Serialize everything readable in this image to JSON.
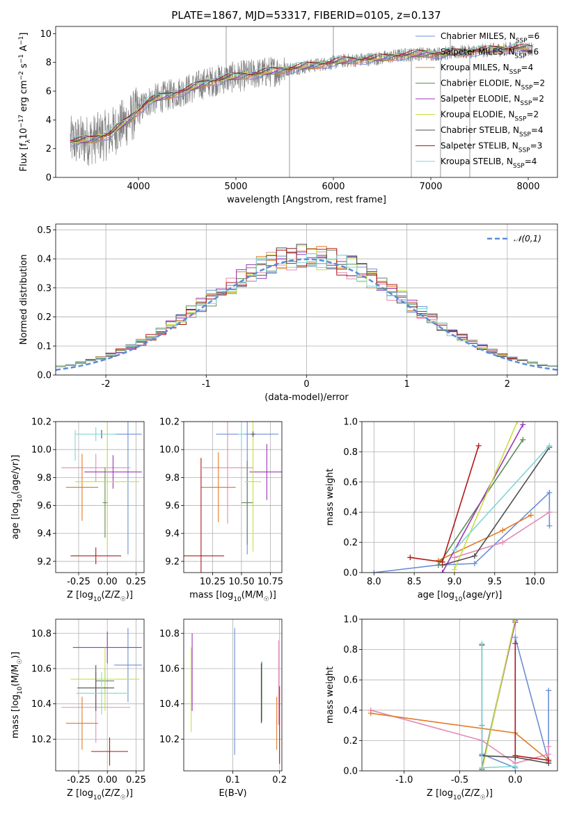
{
  "chart_data": [
    {
      "id": "spectrum",
      "type": "line",
      "title": "PLATE=1867, MJD=53317, FIBERID=0105, z=0.137",
      "xlabel": "wavelength [Angstrom, rest frame]",
      "ylabel": "Flux [fλ10⁻¹⁷ erg cm⁻² s⁻¹ A⁻¹]",
      "xlim": [
        3150,
        8300
      ],
      "ylim": [
        0,
        10.5
      ],
      "xticks": [
        4000,
        5000,
        6000,
        7000,
        8000
      ],
      "yticks": [
        0,
        2,
        4,
        6,
        8,
        10
      ],
      "legend_position": "upper right",
      "series": [
        {
          "name": "Chabrier MILES, N_SSP=6",
          "color": "#6b8ed6"
        },
        {
          "name": "Salpeter MILES, N_SSP=6",
          "color": "#e38bb4"
        },
        {
          "name": "Kroupa MILES, N_SSP=4",
          "color": "#e07b25"
        },
        {
          "name": "Chabrier ELODIE, N_SSP=2",
          "color": "#5c8a5c"
        },
        {
          "name": "Salpeter ELODIE, N_SSP=2",
          "color": "#9a35b5"
        },
        {
          "name": "Kroupa ELODIE, N_SSP=2",
          "color": "#c9df3f"
        },
        {
          "name": "Chabrier STELIB, N_SSP=4",
          "color": "#4d4d4d"
        },
        {
          "name": "Salpeter STELIB, N_SSP=3",
          "color": "#b01818"
        },
        {
          "name": "Kroupa STELIB, N_SSP=4",
          "color": "#7fd6d6"
        }
      ],
      "continuum_x": [
        3300,
        3500,
        3700,
        3900,
        4100,
        4300,
        4500,
        4700,
        4900,
        5100,
        5300,
        5500,
        5700,
        5900,
        6100,
        6300,
        6500,
        6700,
        6900,
        7100,
        7300,
        7500,
        7700,
        7900,
        8050
      ],
      "continuum_y": [
        2.5,
        2.6,
        3.0,
        4.0,
        5.3,
        5.7,
        6.1,
        6.6,
        6.9,
        7.1,
        7.3,
        7.5,
        7.7,
        7.9,
        8.1,
        8.2,
        8.3,
        8.5,
        8.6,
        8.6,
        8.7,
        8.8,
        8.9,
        9.0,
        8.9
      ]
    },
    {
      "id": "residuals",
      "type": "histogram",
      "xlabel": "(data-model)/error",
      "ylabel": "Normed distribution",
      "xlim": [
        -2.5,
        2.5
      ],
      "ylim": [
        0,
        0.52
      ],
      "xticks": [
        -2,
        -1,
        0,
        1,
        2
      ],
      "yticks": [
        0.0,
        0.1,
        0.2,
        0.3,
        0.4,
        0.5
      ],
      "bin_width": 0.1,
      "gaussian_label": "𝒩(0,1)",
      "gaussian_color": "#5b8bd9",
      "legend_position": "upper right"
    },
    {
      "id": "age_vs_Z",
      "type": "errorbar",
      "xlabel": "Z [log10(Z/Z☉)]",
      "ylabel": "age  [log10(age/yr)]",
      "xlim": [
        -0.45,
        0.32
      ],
      "ylim": [
        9.12,
        10.2
      ],
      "xticks": [
        -0.25,
        0.0,
        0.25
      ],
      "yticks": [
        9.2,
        9.4,
        9.6,
        9.8,
        10.0,
        10.2
      ],
      "points": [
        {
          "x": 0.18,
          "y": 10.11,
          "xerr": 0.12,
          "yerr": 0.86,
          "color": "#6b8ed6"
        },
        {
          "x": -0.1,
          "y": 9.87,
          "xerr": 0.3,
          "yerr": 0.1,
          "color": "#e38bb4"
        },
        {
          "x": -0.22,
          "y": 9.73,
          "xerr": 0.14,
          "yerr": 0.24,
          "color": "#e07b25"
        },
        {
          "x": -0.02,
          "y": 9.62,
          "xerr": 0.02,
          "yerr": 0.25,
          "color": "#5c8a5c"
        },
        {
          "x": 0.05,
          "y": 9.84,
          "xerr": 0.25,
          "yerr": 0.12,
          "color": "#9a35b5"
        },
        {
          "x": 0.0,
          "y": 9.77,
          "xerr": 0.28,
          "yerr": 0.48,
          "color": "#c9df3f"
        },
        {
          "x": -0.05,
          "y": 10.11,
          "xerr": 0.0,
          "yerr": 0.03,
          "color": "#4d4d4d"
        },
        {
          "x": -0.1,
          "y": 9.24,
          "xerr": 0.22,
          "yerr": 0.06,
          "color": "#b01818"
        },
        {
          "x": -0.1,
          "y": 10.11,
          "xerr": 0.18,
          "yerr": 0.05,
          "color": "#7fd6d6"
        },
        {
          "x": -0.28,
          "y": 10.03,
          "xerr": 0.0,
          "yerr": 0.11,
          "color": "#7fd6d6"
        }
      ]
    },
    {
      "id": "age_vs_mass",
      "type": "errorbar",
      "xlabel": "mass [log10(M/M☉)]",
      "xlim": [
        10.0,
        10.85
      ],
      "ylim": [
        9.12,
        10.2
      ],
      "xticks": [
        10.25,
        10.5,
        10.75
      ],
      "yticks": [
        9.2,
        9.4,
        9.6,
        9.8,
        10.0,
        10.2
      ],
      "points": [
        {
          "x": 10.55,
          "y": 10.11,
          "xerr": 0.27,
          "yerr": 0.86,
          "color": "#6b8ed6"
        },
        {
          "x": 10.38,
          "y": 9.87,
          "xerr": 0.22,
          "yerr": 0.4,
          "color": "#e38bb4"
        },
        {
          "x": 10.3,
          "y": 9.73,
          "xerr": 0.15,
          "yerr": 0.25,
          "color": "#e07b25"
        },
        {
          "x": 10.55,
          "y": 9.62,
          "xerr": 0.05,
          "yerr": 0.3,
          "color": "#5c8a5c"
        },
        {
          "x": 10.72,
          "y": 9.84,
          "xerr": 0.15,
          "yerr": 0.2,
          "color": "#9a35b5"
        },
        {
          "x": 10.6,
          "y": 9.77,
          "xerr": 0.07,
          "yerr": 0.5,
          "color": "#c9df3f"
        },
        {
          "x": 10.6,
          "y": 10.11,
          "xerr": 0.02,
          "yerr": 0.02,
          "color": "#4d4d4d"
        },
        {
          "x": 10.15,
          "y": 9.24,
          "xerr": 0.2,
          "yerr": 0.7,
          "color": "#b01818"
        },
        {
          "x": 10.5,
          "y": 10.11,
          "xerr": 0.03,
          "yerr": 0.12,
          "color": "#7fd6d6"
        }
      ]
    },
    {
      "id": "mass_weight_vs_age",
      "type": "line",
      "xlabel": "age  [log10(age/yr)]",
      "ylabel": "mass weight",
      "xlim": [
        7.85,
        10.28
      ],
      "ylim": [
        0,
        1
      ],
      "xticks": [
        8.0,
        8.5,
        9.0,
        9.5,
        10.0
      ],
      "yticks": [
        0.0,
        0.2,
        0.4,
        0.6,
        0.8,
        1.0
      ],
      "series": [
        {
          "color": "#6b8ed6",
          "x": [
            8.0,
            8.8,
            9.25,
            10.18,
            10.18
          ],
          "y": [
            0.0,
            0.05,
            0.06,
            0.53,
            0.31
          ]
        },
        {
          "color": "#e38bb4",
          "x": [
            9.0,
            9.6,
            10.18
          ],
          "y": [
            0.1,
            0.2,
            0.4
          ]
        },
        {
          "color": "#e07b25",
          "x": [
            8.8,
            9.6,
            9.95
          ],
          "y": [
            0.08,
            0.28,
            0.38
          ]
        },
        {
          "color": "#5c8a5c",
          "x": [
            8.8,
            9.85
          ],
          "y": [
            0.05,
            0.88
          ]
        },
        {
          "color": "#9a35b5",
          "x": [
            8.85,
            9.85
          ],
          "y": [
            0.0,
            0.98
          ]
        },
        {
          "color": "#c9df3f",
          "x": [
            9.0,
            9.78
          ],
          "y": [
            0.02,
            1.0
          ]
        },
        {
          "color": "#4d4d4d",
          "x": [
            8.85,
            9.25,
            10.18
          ],
          "y": [
            0.05,
            0.11,
            0.83
          ]
        },
        {
          "color": "#b01818",
          "x": [
            8.45,
            8.85,
            9.3
          ],
          "y": [
            0.1,
            0.07,
            0.84
          ]
        },
        {
          "color": "#7fd6d6",
          "x": [
            9.0,
            10.18
          ],
          "y": [
            0.15,
            0.84
          ]
        }
      ]
    },
    {
      "id": "mass_vs_Z",
      "type": "errorbar",
      "xlabel": "Z [log10(Z/Z☉)]",
      "ylabel": "mass [log10(M/M☉)]",
      "xlim": [
        -0.45,
        0.32
      ],
      "ylim": [
        10.02,
        10.88
      ],
      "xticks": [
        -0.25,
        0.0,
        0.25
      ],
      "yticks": [
        10.2,
        10.4,
        10.6,
        10.8
      ],
      "points": [
        {
          "x": 0.18,
          "y": 10.62,
          "xerr": 0.12,
          "yerr": 0.21,
          "color": "#6b8ed6"
        },
        {
          "x": -0.1,
          "y": 10.38,
          "xerr": 0.3,
          "yerr": 0.2,
          "color": "#e38bb4"
        },
        {
          "x": -0.22,
          "y": 10.29,
          "xerr": 0.14,
          "yerr": 0.15,
          "color": "#e07b25"
        },
        {
          "x": -0.02,
          "y": 10.53,
          "xerr": 0.08,
          "yerr": 0.07,
          "color": "#5c8a5c"
        },
        {
          "x": 0.0,
          "y": 10.72,
          "xerr": 0.3,
          "yerr": 0.09,
          "color": "#9a35b5"
        },
        {
          "x": -0.02,
          "y": 10.54,
          "xerr": 0.3,
          "yerr": 0.18,
          "color": "#c9df3f"
        },
        {
          "x": -0.1,
          "y": 10.49,
          "xerr": 0.16,
          "yerr": 0.13,
          "color": "#4d4d4d"
        },
        {
          "x": 0.02,
          "y": 10.13,
          "xerr": 0.16,
          "yerr": 0.08,
          "color": "#b01818"
        },
        {
          "x": -0.05,
          "y": 10.46,
          "xerr": 0.22,
          "yerr": 0.12,
          "color": "#7fd6d6"
        }
      ]
    },
    {
      "id": "mass_vs_ebv",
      "type": "errorbar",
      "xlabel": "E(B-V)",
      "xlim": [
        -0.005,
        0.205
      ],
      "ylim": [
        10.02,
        10.88
      ],
      "xticks": [
        0.1,
        0.2
      ],
      "yticks": [
        10.2,
        10.4,
        10.6,
        10.8
      ],
      "points": [
        {
          "x": 0.104,
          "y": 10.47,
          "yerr": 0.36,
          "color": "#6b8ed6"
        },
        {
          "x": 0.198,
          "y": 10.52,
          "yerr": 0.24,
          "color": "#e38bb4"
        },
        {
          "x": 0.194,
          "y": 10.29,
          "yerr": 0.15,
          "color": "#e07b25"
        },
        {
          "x": 0.162,
          "y": 10.47,
          "yerr": 0.17,
          "color": "#5c8a5c"
        },
        {
          "x": 0.013,
          "y": 10.58,
          "yerr": 0.22,
          "color": "#9a35b5"
        },
        {
          "x": 0.011,
          "y": 10.48,
          "yerr": 0.24,
          "color": "#c9df3f"
        },
        {
          "x": 0.161,
          "y": 10.46,
          "yerr": 0.17,
          "color": "#4d4d4d"
        },
        {
          "x": 0.2,
          "y": 10.28,
          "yerr": 0.22,
          "color": "#b01818"
        }
      ]
    },
    {
      "id": "mass_weight_vs_Z",
      "type": "line",
      "xlabel": "Z [log10(Z/Z☉)]",
      "ylabel": "mass weight",
      "xlim": [
        -1.38,
        0.38
      ],
      "ylim": [
        0,
        1
      ],
      "xticks": [
        -1.0,
        -0.5,
        0.0
      ],
      "yticks": [
        0.0,
        0.2,
        0.4,
        0.6,
        0.8,
        1.0
      ],
      "series": [
        {
          "color": "#6b8ed6",
          "x": [
            -0.3,
            -0.3,
            0.0,
            0.0,
            0.3,
            0.3
          ],
          "y": [
            0.3,
            0.11,
            0.02,
            0.88,
            0.06,
            0.53
          ]
        },
        {
          "color": "#e38bb4",
          "x": [
            -1.3,
            -0.3,
            0.0,
            0.3,
            0.3
          ],
          "y": [
            0.4,
            0.2,
            0.05,
            0.11,
            0.16
          ]
        },
        {
          "color": "#e07b25",
          "x": [
            -1.3,
            0.0,
            0.3
          ],
          "y": [
            0.38,
            0.25,
            0.07
          ]
        },
        {
          "color": "#5c8a5c",
          "x": [
            -0.3,
            0.0
          ],
          "y": [
            0.02,
            0.99
          ]
        },
        {
          "color": "#9a35b5",
          "x": [
            -0.3,
            0.0
          ],
          "y": [
            0.01,
            0.98
          ]
        },
        {
          "color": "#c9df3f",
          "x": [
            -0.3,
            0.0
          ],
          "y": [
            0.0,
            1.0
          ]
        },
        {
          "color": "#4d4d4d",
          "x": [
            -0.3,
            -0.3,
            0.0,
            0.3
          ],
          "y": [
            0.83,
            0.1,
            0.09,
            0.05
          ]
        },
        {
          "color": "#b01818",
          "x": [
            0.0,
            0.0,
            0.3
          ],
          "y": [
            0.84,
            0.1,
            0.07
          ]
        },
        {
          "color": "#7fd6d6",
          "x": [
            -0.3,
            -0.3,
            0.0
          ],
          "y": [
            0.84,
            0.02,
            0.03
          ]
        }
      ]
    }
  ]
}
